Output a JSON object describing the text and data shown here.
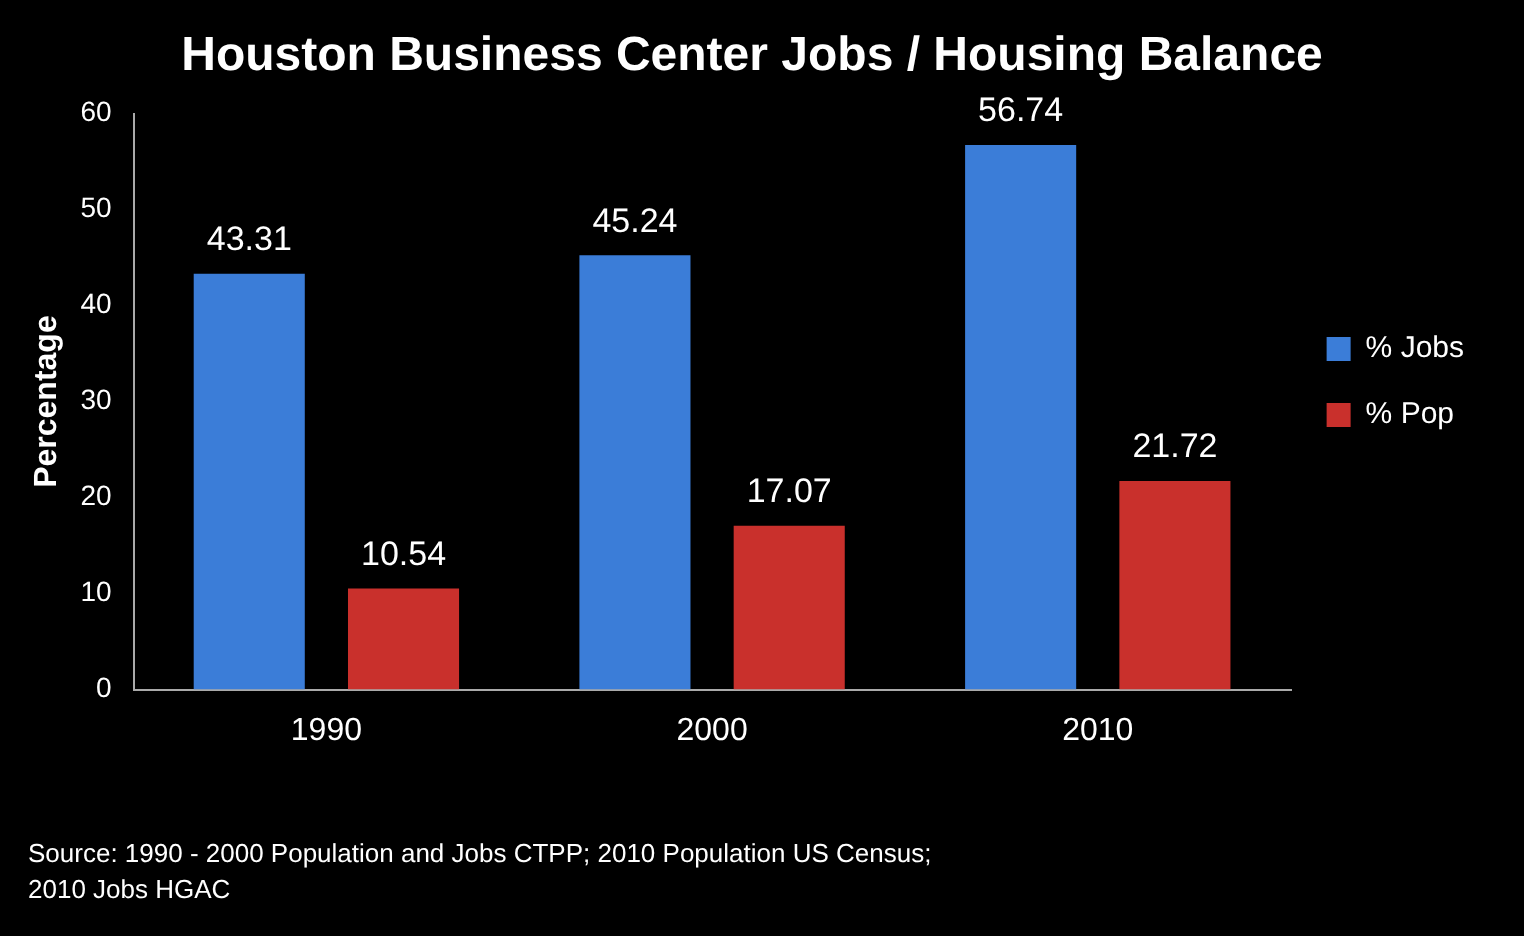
{
  "chart_data": {
    "type": "bar",
    "title": "Houston Business Center Jobs / Housing Balance",
    "ylabel": "Percentage",
    "categories": [
      "1990",
      "2000",
      "2010"
    ],
    "series": [
      {
        "name": "% Jobs",
        "color": "#3b7dd8",
        "values": [
          43.31,
          45.24,
          56.74
        ]
      },
      {
        "name": "% Pop",
        "color": "#c9302c",
        "values": [
          10.54,
          17.07,
          21.72
        ]
      }
    ],
    "ylim": [
      0,
      60
    ],
    "yticks": [
      0,
      10,
      20,
      30,
      40,
      50,
      60
    ],
    "grid": false,
    "legend": "right",
    "data_labels": true,
    "annotations": [
      "Source: 1990 - 2000 Population and Jobs CTPP; 2010 Population US Census; 2010 Jobs HGAC"
    ]
  }
}
